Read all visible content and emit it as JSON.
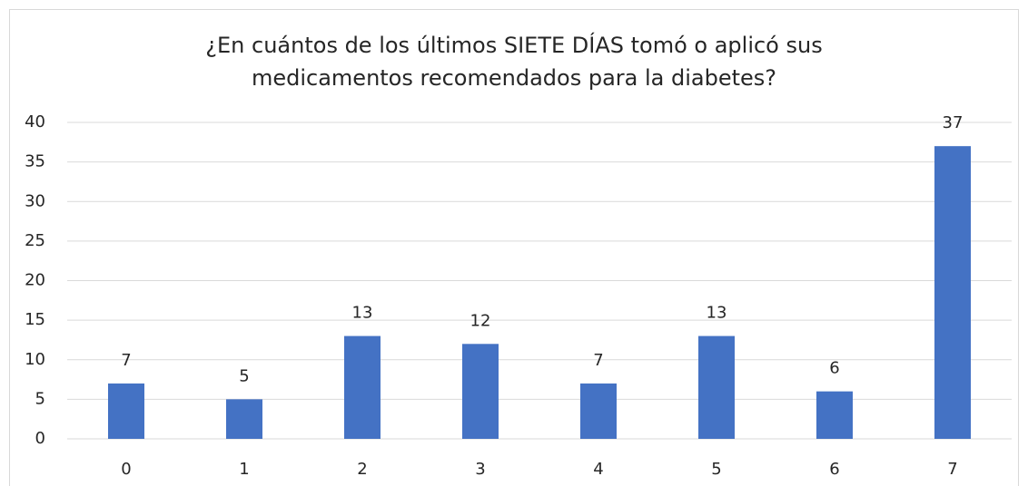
{
  "chart_data": {
    "type": "bar",
    "title": [
      "¿En cuántos de los últimos SIETE DÍAS tomó o aplicó sus",
      "medicamentos recomendados para la diabetes?"
    ],
    "categories": [
      "0",
      "1",
      "2",
      "3",
      "4",
      "5",
      "6",
      "7"
    ],
    "values": [
      7,
      5,
      13,
      12,
      7,
      13,
      6,
      37
    ],
    "color": "#4472c4",
    "ylim": [
      0,
      40
    ],
    "yticks": [
      0,
      5,
      10,
      15,
      20,
      25,
      30,
      35,
      40
    ],
    "grid": true
  }
}
